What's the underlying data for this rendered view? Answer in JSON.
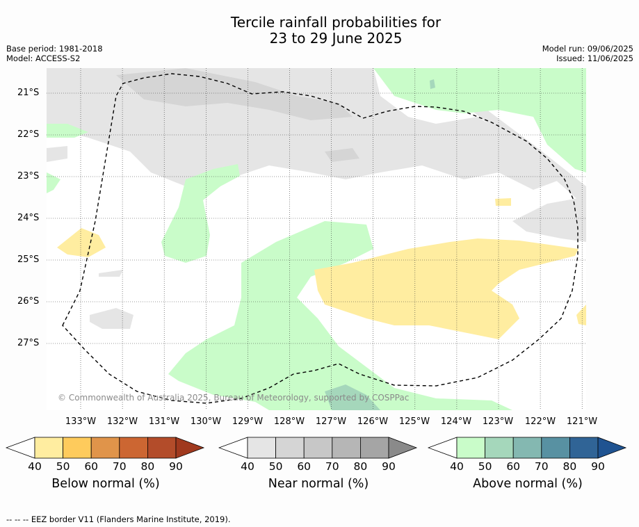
{
  "title_line1": "Tercile rainfall probabilities for",
  "title_line2": "23 to 29 June 2025",
  "base_period": "Base period: 1981-2018",
  "model": "Model: ACCESS-S2",
  "model_run": "Model run: 09/06/2025",
  "issued": "Issued: 11/06/2025",
  "latitudes": [
    "21°S",
    "22°S",
    "23°S",
    "24°S",
    "25°S",
    "26°S",
    "27°S"
  ],
  "longitudes": [
    "133°W",
    "132°W",
    "131°W",
    "130°W",
    "129°W",
    "128°W",
    "127°W",
    "126°W",
    "125°W",
    "124°W",
    "123°W",
    "122°W",
    "121°W"
  ],
  "copyright": "© Commonwealth of Australia 2025, Bureau of Meteorology, supported by COSPPac",
  "colorbars": [
    {
      "label": "Below normal (%)",
      "ticks": [
        "40",
        "50",
        "60",
        "70",
        "80",
        "90"
      ],
      "colors": [
        "#ffffff",
        "#ffeda0",
        "#fecb5c",
        "#e0944a",
        "#cc6632",
        "#b34c2a",
        "#a0391e"
      ]
    },
    {
      "label": "Near normal (%)",
      "ticks": [
        "40",
        "50",
        "60",
        "70",
        "80",
        "90"
      ],
      "colors": [
        "#ffffff",
        "#e5e5e5",
        "#d5d5d5",
        "#c7c7c7",
        "#b6b6b6",
        "#a5a5a5",
        "#8a8a8a"
      ]
    },
    {
      "label": "Above normal (%)",
      "ticks": [
        "40",
        "50",
        "60",
        "70",
        "80",
        "90"
      ],
      "colors": [
        "#ffffff",
        "#c9fcc9",
        "#a5d7bb",
        "#84b8b1",
        "#5891a2",
        "#306496",
        "#1f5391"
      ]
    }
  ],
  "footer": "-- -- -- EEZ border V11 (Flanders Marine Institute, 2019)."
}
